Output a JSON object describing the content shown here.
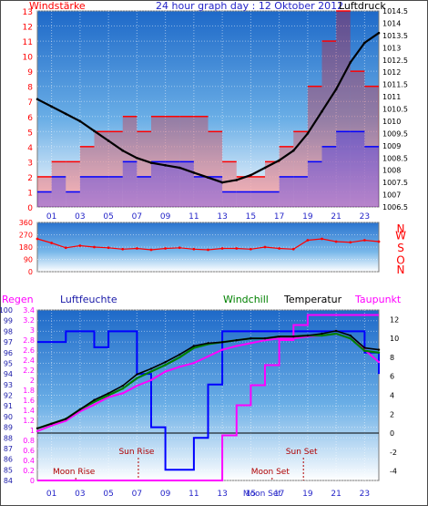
{
  "title": "24 hour graph day : 12 Oktober 2012",
  "colors": {
    "frame": "#6b6b6b",
    "wind": "#ff0000",
    "gust_blue": "#0000ff",
    "pressure": "#000000",
    "windchill": "#008000",
    "temperature": "#000000",
    "dewpoint": "#ff00ff",
    "humidity": "#0000ff",
    "rain": "#ff00ff"
  },
  "chart_data": [
    {
      "type": "bar",
      "left_label": "Windstärke",
      "right_label": "Luftdruck",
      "x_ticks": [
        "01",
        "03",
        "05",
        "07",
        "09",
        "11",
        "13",
        "15",
        "17",
        "19",
        "21",
        "23"
      ],
      "y_left_ticks": [
        "0",
        "1",
        "2",
        "3",
        "4",
        "5",
        "6",
        "7",
        "8",
        "9",
        "10",
        "11",
        "12",
        "13"
      ],
      "y_left_lim": [
        0,
        13
      ],
      "y_right_ticks": [
        "1006.5",
        "1007",
        "1007.5",
        "1008",
        "1008.5",
        "1009",
        "1009.5",
        "1010",
        "1010.5",
        "1011",
        "1011.5",
        "1012",
        "1012.5",
        "1013",
        "1013.5",
        "1014",
        "1014.5"
      ],
      "y_right_lim": [
        1006.5,
        1014.5
      ],
      "pressure": {
        "x": [
          0,
          1,
          2,
          3,
          4,
          5,
          6,
          7,
          8,
          9,
          10,
          11,
          12,
          13,
          14,
          15,
          16,
          17,
          18,
          19,
          20,
          21,
          22,
          23,
          24
        ],
        "y": [
          1010.9,
          1010.6,
          1010.3,
          1010.0,
          1009.6,
          1009.2,
          1008.8,
          1008.5,
          1008.3,
          1008.2,
          1008.1,
          1007.9,
          1007.7,
          1007.5,
          1007.6,
          1007.8,
          1008.1,
          1008.4,
          1008.8,
          1009.5,
          1010.4,
          1011.3,
          1012.4,
          1013.2,
          1013.6
        ]
      },
      "wind_avg": {
        "x": [
          0,
          1,
          2,
          3,
          4,
          5,
          6,
          7,
          8,
          9,
          10,
          11,
          12,
          13,
          14,
          15,
          16,
          17,
          18,
          19,
          20,
          21,
          22,
          23,
          24
        ],
        "y": [
          1,
          2,
          1,
          2,
          2,
          2,
          3,
          2,
          3,
          3,
          3,
          2,
          2,
          1,
          1,
          1,
          1,
          2,
          2,
          3,
          4,
          5,
          5,
          4,
          3
        ]
      },
      "wind_gust": {
        "x": [
          0,
          1,
          2,
          3,
          4,
          5,
          6,
          7,
          8,
          9,
          10,
          11,
          12,
          13,
          14,
          15,
          16,
          17,
          18,
          19,
          20,
          21,
          22,
          23,
          24
        ],
        "y": [
          2,
          3,
          3,
          4,
          5,
          5,
          6,
          5,
          6,
          6,
          6,
          6,
          5,
          3,
          2,
          2,
          3,
          4,
          5,
          8,
          11,
          13,
          9,
          8,
          6
        ]
      }
    },
    {
      "type": "scatter",
      "left_ticks": [
        "0",
        "90",
        "180",
        "270",
        "360"
      ],
      "y_lim": [
        0,
        360
      ],
      "right_letters": [
        "N",
        "W",
        "S",
        "O",
        "N"
      ],
      "direction": {
        "x": [
          0,
          1,
          2,
          3,
          4,
          5,
          6,
          7,
          8,
          9,
          10,
          11,
          12,
          13,
          14,
          15,
          16,
          17,
          18,
          19,
          20,
          21,
          22,
          23,
          24
        ],
        "y": [
          240,
          210,
          175,
          190,
          180,
          175,
          165,
          170,
          160,
          170,
          175,
          165,
          160,
          170,
          170,
          165,
          180,
          170,
          165,
          230,
          240,
          220,
          215,
          230,
          220
        ]
      }
    },
    {
      "type": "line",
      "legend": [
        "Regen",
        "Luftfeuchte",
        "Windchill",
        "Temperatur",
        "Taupunkt"
      ],
      "x_ticks": [
        "01",
        "03",
        "05",
        "07",
        "09",
        "11",
        "13",
        "15",
        "17",
        "19",
        "21",
        "23"
      ],
      "rain_ticks": [
        "0",
        "0.2",
        "0.4",
        "0.6",
        "0.8",
        "1",
        "1.2",
        "1.4",
        "1.6",
        "1.8",
        "2",
        "2.2",
        "2.4",
        "2.6",
        "2.8",
        "3",
        "3.2",
        "3.4"
      ],
      "humidity_ticks": [
        "84",
        "85",
        "86",
        "87",
        "88",
        "89",
        "90",
        "91",
        "92",
        "93",
        "94",
        "95",
        "96",
        "97",
        "98",
        "99",
        "100"
      ],
      "temp_ticks": [
        "-4",
        "-2",
        "0",
        "2",
        "4",
        "6",
        "8",
        "10",
        "12"
      ],
      "humidity_lim": [
        84,
        100
      ],
      "temp_lim": [
        -5,
        13
      ],
      "rain_lim": [
        0,
        3.4
      ],
      "annotations": [
        {
          "label": "Moon Rise",
          "hour": 2.7,
          "level": "low"
        },
        {
          "label": "Sun Rise",
          "hour": 7.1,
          "level": "high"
        },
        {
          "label": "Sun Set",
          "hour": 18.7,
          "level": "high"
        },
        {
          "label": "Moon Set",
          "hour": 16.5,
          "level": "low"
        }
      ],
      "moon_set_axis_label": "Moon Set",
      "humidity": {
        "x": [
          0,
          1,
          2,
          3,
          4,
          5,
          6,
          7,
          8,
          9,
          10,
          11,
          12,
          13,
          14,
          15,
          16,
          17,
          18,
          19,
          20,
          21,
          22,
          23,
          24
        ],
        "y": [
          97,
          97,
          98,
          98,
          96.5,
          98,
          98,
          94,
          89,
          85,
          85,
          88,
          93,
          98,
          98,
          98,
          98,
          98,
          98,
          98,
          98,
          98,
          98,
          96,
          94
        ]
      },
      "temperature": {
        "x": [
          0,
          1,
          2,
          3,
          4,
          5,
          6,
          7,
          8,
          9,
          10,
          11,
          12,
          13,
          14,
          15,
          16,
          17,
          18,
          19,
          20,
          21,
          22,
          23,
          24
        ],
        "y": [
          0.5,
          1.0,
          1.5,
          2.5,
          3.5,
          4.2,
          5.0,
          6.2,
          6.8,
          7.5,
          8.3,
          9.2,
          9.5,
          9.6,
          9.8,
          10.0,
          10.0,
          10.2,
          10.2,
          10.3,
          10.5,
          10.8,
          10.3,
          9.0,
          8.8
        ]
      },
      "windchill": {
        "x": [
          0,
          1,
          2,
          3,
          4,
          5,
          6,
          7,
          8,
          9,
          10,
          11,
          12,
          13,
          14,
          15,
          16,
          17,
          18,
          19,
          20,
          21,
          22,
          23,
          24
        ],
        "y": [
          0.5,
          1.0,
          1.5,
          2.5,
          3.3,
          4.0,
          4.7,
          5.8,
          6.5,
          7.2,
          8.0,
          9.0,
          9.4,
          9.6,
          9.8,
          10.0,
          10.0,
          10.2,
          10.2,
          10.3,
          10.3,
          10.5,
          10.0,
          8.7,
          8.5
        ]
      },
      "dewpoint": {
        "x": [
          0,
          1,
          2,
          3,
          4,
          5,
          6,
          7,
          8,
          9,
          10,
          11,
          12,
          13,
          14,
          15,
          16,
          17,
          18,
          19,
          20,
          21,
          22,
          23,
          24
        ],
        "y": [
          0.2,
          0.8,
          1.3,
          2.3,
          3.0,
          3.8,
          4.2,
          5.0,
          5.6,
          6.5,
          7.0,
          7.4,
          8.1,
          8.8,
          9.2,
          9.5,
          9.8,
          10.0,
          10.0,
          10.2,
          10.3,
          10.5,
          10.0,
          8.8,
          7.5
        ]
      },
      "rain": {
        "x": [
          0,
          1,
          2,
          3,
          4,
          5,
          6,
          7,
          8,
          9,
          10,
          11,
          12,
          13,
          14,
          15,
          16,
          17,
          18,
          19,
          20,
          21,
          22,
          23,
          24
        ],
        "y": [
          0,
          0,
          0,
          0,
          0,
          0,
          0,
          0,
          0,
          0,
          0,
          0,
          0,
          0.9,
          1.5,
          1.9,
          2.3,
          2.8,
          3.1,
          3.3,
          3.3,
          3.3,
          3.3,
          3.3,
          3.3
        ]
      }
    }
  ]
}
